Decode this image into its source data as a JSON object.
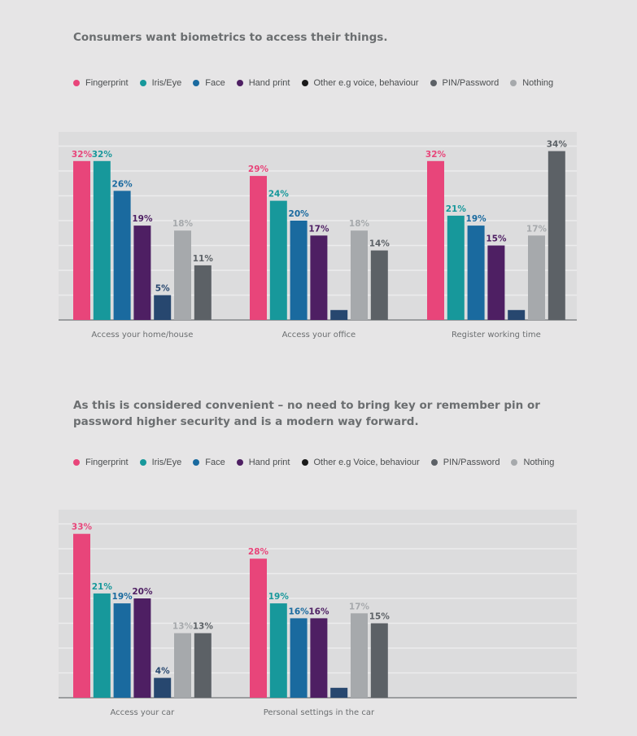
{
  "colors": {
    "Fingerprint": "#e8457a",
    "Iris/Eye": "#17989b",
    "Face": "#1a6a9f",
    "Hand print": "#4e1f63",
    "Other": "#1a1a1a",
    "Other bar": "#27476f",
    "PIN/Password": "#5c6166",
    "Nothing": "#a6a9ac"
  },
  "sections": [
    {
      "title": "Consumers want biometrics to access their things.",
      "legend": [
        "Fingerprint",
        "Iris/Eye",
        "Face",
        "Hand print",
        "Other e.g voice, behaviour",
        "PIN/Password",
        "Nothing"
      ]
    },
    {
      "title": "As this is considered convenient – no need to bring key or remember pin or password higher security and is a modern way forward.",
      "legend": [
        "Fingerprint",
        "Iris/Eye",
        "Face",
        "Hand print",
        "Other e.g Voice, behaviour",
        "PIN/Password",
        "Nothing"
      ]
    }
  ],
  "chart_data": [
    {
      "type": "bar",
      "title": "Consumers want biometrics to access their things.",
      "categories": [
        "Access your home/house",
        "Access your office",
        "Register working time"
      ],
      "series": [
        {
          "name": "Fingerprint",
          "values": [
            32,
            29,
            32
          ],
          "labels": [
            "32%",
            "29%",
            "32%"
          ]
        },
        {
          "name": "Iris/Eye",
          "values": [
            32,
            24,
            21
          ],
          "labels": [
            "32%",
            "24%",
            "21%"
          ]
        },
        {
          "name": "Face",
          "values": [
            26,
            20,
            19
          ],
          "labels": [
            "26%",
            "20%",
            "19%"
          ]
        },
        {
          "name": "Hand print",
          "values": [
            19,
            17,
            15
          ],
          "labels": [
            "19%",
            "17%",
            "15%"
          ]
        },
        {
          "name": "Other e.g voice, behaviour",
          "values": [
            5,
            2,
            2
          ],
          "labels": [
            "5%",
            "",
            ""
          ]
        },
        {
          "name": "Nothing",
          "values": [
            18,
            18,
            17
          ],
          "labels": [
            "18%",
            "18%",
            "17%"
          ]
        },
        {
          "name": "PIN/Password",
          "values": [
            11,
            14,
            34
          ],
          "labels": [
            "11%",
            "14%",
            "34%"
          ]
        }
      ],
      "ylim": [
        0,
        36
      ],
      "grid": true,
      "legend_position": "top"
    },
    {
      "type": "bar",
      "title": "As this is considered convenient – no need to bring key or remember pin or password higher security and is a modern way forward.",
      "categories": [
        "Access your car",
        "Personal settings in the car"
      ],
      "series": [
        {
          "name": "Fingerprint",
          "values": [
            33,
            28
          ],
          "labels": [
            "33%",
            "28%"
          ]
        },
        {
          "name": "Iris/Eye",
          "values": [
            21,
            19
          ],
          "labels": [
            "21%",
            "19%"
          ]
        },
        {
          "name": "Face",
          "values": [
            19,
            16
          ],
          "labels": [
            "19%",
            "16%"
          ]
        },
        {
          "name": "Hand print",
          "values": [
            20,
            16
          ],
          "labels": [
            "20%",
            "16%"
          ]
        },
        {
          "name": "Other e.g Voice, behaviour",
          "values": [
            4,
            2
          ],
          "labels": [
            "4%",
            ""
          ]
        },
        {
          "name": "Nothing",
          "values": [
            13,
            17
          ],
          "labels": [
            "13%",
            "17%"
          ]
        },
        {
          "name": "PIN/Password",
          "values": [
            13,
            15
          ],
          "labels": [
            "13%",
            "15%"
          ]
        }
      ],
      "ylim": [
        0,
        36
      ],
      "grid": true,
      "legend_position": "top"
    }
  ]
}
